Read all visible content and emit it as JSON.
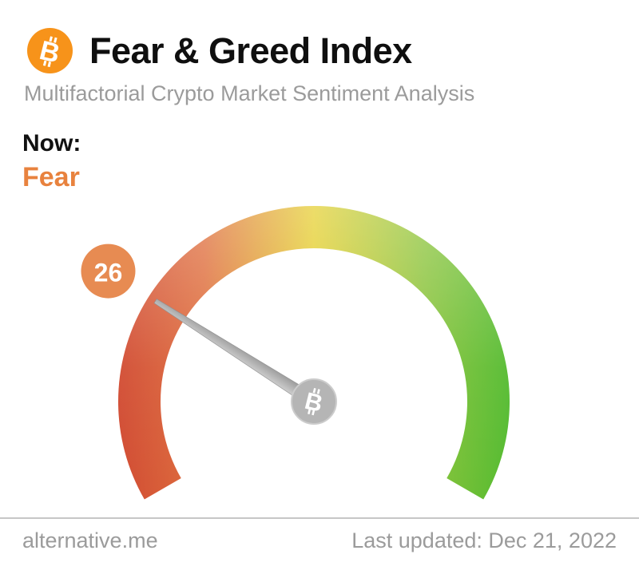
{
  "header": {
    "title": "Fear & Greed Index",
    "subtitle": "Multifactorial Crypto Market Sentiment Analysis",
    "logo_icon": "bitcoin-icon"
  },
  "now": {
    "label": "Now:",
    "sentiment": "Fear"
  },
  "gauge": {
    "value": 26,
    "min": 0,
    "max": 100,
    "start_angle_deg": 210,
    "end_angle_deg": -30,
    "hub_icon": "bitcoin-icon"
  },
  "footer": {
    "site": "alternative.me",
    "last_updated": "Last updated: Dec 21, 2022"
  },
  "colors": {
    "bitcoin_orange": "#f7931a",
    "sentiment_fear": "#e8823e",
    "badge": "#e78b52",
    "gauge_gradient": [
      "#d14b32",
      "#df6f3e",
      "#e5cf30",
      "#8cc43c",
      "#54bb30"
    ],
    "needle_light": "#cfcfcf",
    "needle_dark": "#9a9a9a",
    "hub_gray": "#b5b5b5",
    "text_gray": "#9b9b9b",
    "title_black": "#0f0f0f"
  },
  "chart_data": {
    "type": "gauge",
    "title": "Fear & Greed Index",
    "subtitle": "Multifactorial Crypto Market Sentiment Analysis",
    "value": 26,
    "range": [
      0,
      100
    ],
    "classification": "Fear",
    "scale": "0 = Extreme Fear (red, left) through 50 (yellow, top) to 100 = Extreme Greed (green, right)",
    "needle_points_to": 26,
    "as_of": "Dec 21, 2022",
    "source": "alternative.me"
  }
}
